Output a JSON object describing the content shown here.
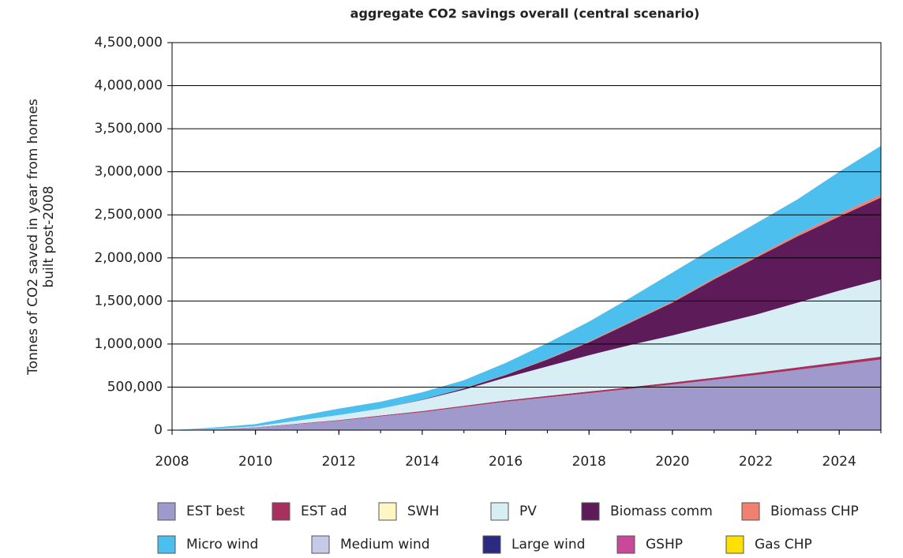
{
  "chart_data": {
    "type": "stacked_area",
    "title": "aggregate CO2 savings overall (central scenario)",
    "y_label": [
      "Tonnes of CO2 saved in year from homes",
      "built post-2008"
    ],
    "x": [
      2008,
      2009,
      2010,
      2011,
      2012,
      2013,
      2014,
      2015,
      2016,
      2017,
      2018,
      2019,
      2020,
      2021,
      2022,
      2023,
      2024,
      2025
    ],
    "xlim": [
      2008,
      2025
    ],
    "xticks": [
      2008,
      2010,
      2012,
      2014,
      2016,
      2018,
      2020,
      2022,
      2024
    ],
    "ylim": [
      0,
      4500000
    ],
    "yticks": [
      0,
      {
        "value": 500000,
        "label": "500,000"
      },
      {
        "value": 1000000,
        "label": "1,000,000"
      },
      {
        "value": 1500000,
        "label": "1,500,000"
      },
      {
        "value": 2000000,
        "label": "2,000,000"
      },
      {
        "value": 2500000,
        "label": "2,500,000"
      },
      {
        "value": 3000000,
        "label": "3,000,000"
      },
      {
        "value": 3500000,
        "label": "3,500,000"
      },
      {
        "value": 4000000,
        "label": "4,000,000"
      },
      {
        "value": 4500000,
        "label": "4,500,000"
      }
    ],
    "grid": true,
    "legend": "bottom",
    "series": [
      {
        "name": "EST best",
        "color": "#9f99cc",
        "values": [
          0,
          10000,
          30000,
          70000,
          110000,
          160000,
          210000,
          270000,
          330000,
          380000,
          430000,
          480000,
          530000,
          585000,
          640000,
          700000,
          760000,
          820000
        ]
      },
      {
        "name": "EST ad",
        "color": "#a8305f",
        "values": [
          0,
          1000,
          3000,
          5000,
          7000,
          9000,
          11000,
          13000,
          15000,
          17000,
          19000,
          21000,
          23000,
          25000,
          27000,
          29000,
          31000,
          33000
        ]
      },
      {
        "name": "SWH",
        "color": "#fff6c4",
        "values": [
          0,
          0,
          0,
          0,
          0,
          0,
          0,
          0,
          0,
          0,
          0,
          0,
          0,
          0,
          0,
          0,
          0,
          0
        ]
      },
      {
        "name": "PV",
        "color": "#d6eef4",
        "values": [
          0,
          4000,
          12000,
          35000,
          58000,
          81000,
          129000,
          187000,
          265000,
          343000,
          421000,
          489000,
          547000,
          610000,
          673000,
          751000,
          829000,
          897000
        ]
      },
      {
        "name": "Biomass comm",
        "color": "#5e1b5a",
        "values": [
          0,
          0,
          0,
          0,
          0,
          0,
          5000,
          15000,
          30000,
          80000,
          150000,
          260000,
          380000,
          530000,
          660000,
          770000,
          860000,
          950000
        ]
      },
      {
        "name": "Biomass CHP",
        "color": "#f08070",
        "values": [
          0,
          0,
          0,
          0,
          0,
          0,
          0,
          2000,
          5000,
          7000,
          10000,
          12000,
          15000,
          17000,
          20000,
          25000,
          30000,
          35000
        ]
      },
      {
        "name": "Micro wind",
        "color": "#4dbfee",
        "values": [
          0,
          15000,
          25000,
          50000,
          75000,
          80000,
          85000,
          93000,
          135000,
          183000,
          230000,
          278000,
          335000,
          353000,
          380000,
          405000,
          490000,
          565000
        ]
      },
      {
        "name": "Medium wind",
        "color": "#c8c8e8",
        "values": [
          0,
          0,
          0,
          0,
          0,
          0,
          0,
          0,
          0,
          0,
          0,
          0,
          0,
          0,
          0,
          0,
          0,
          0
        ]
      },
      {
        "name": "Large wind",
        "color": "#2c2a80",
        "values": [
          0,
          0,
          0,
          0,
          0,
          0,
          0,
          0,
          0,
          0,
          0,
          0,
          0,
          0,
          0,
          0,
          0,
          0
        ]
      },
      {
        "name": "GSHP",
        "color": "#c8489a",
        "values": [
          0,
          0,
          0,
          0,
          0,
          0,
          0,
          0,
          0,
          0,
          0,
          0,
          0,
          0,
          0,
          0,
          0,
          0
        ]
      },
      {
        "name": "Gas CHP",
        "color": "#ffe000",
        "values": [
          0,
          0,
          0,
          0,
          0,
          0,
          0,
          0,
          0,
          0,
          0,
          0,
          0,
          0,
          0,
          0,
          0,
          0
        ]
      }
    ]
  }
}
